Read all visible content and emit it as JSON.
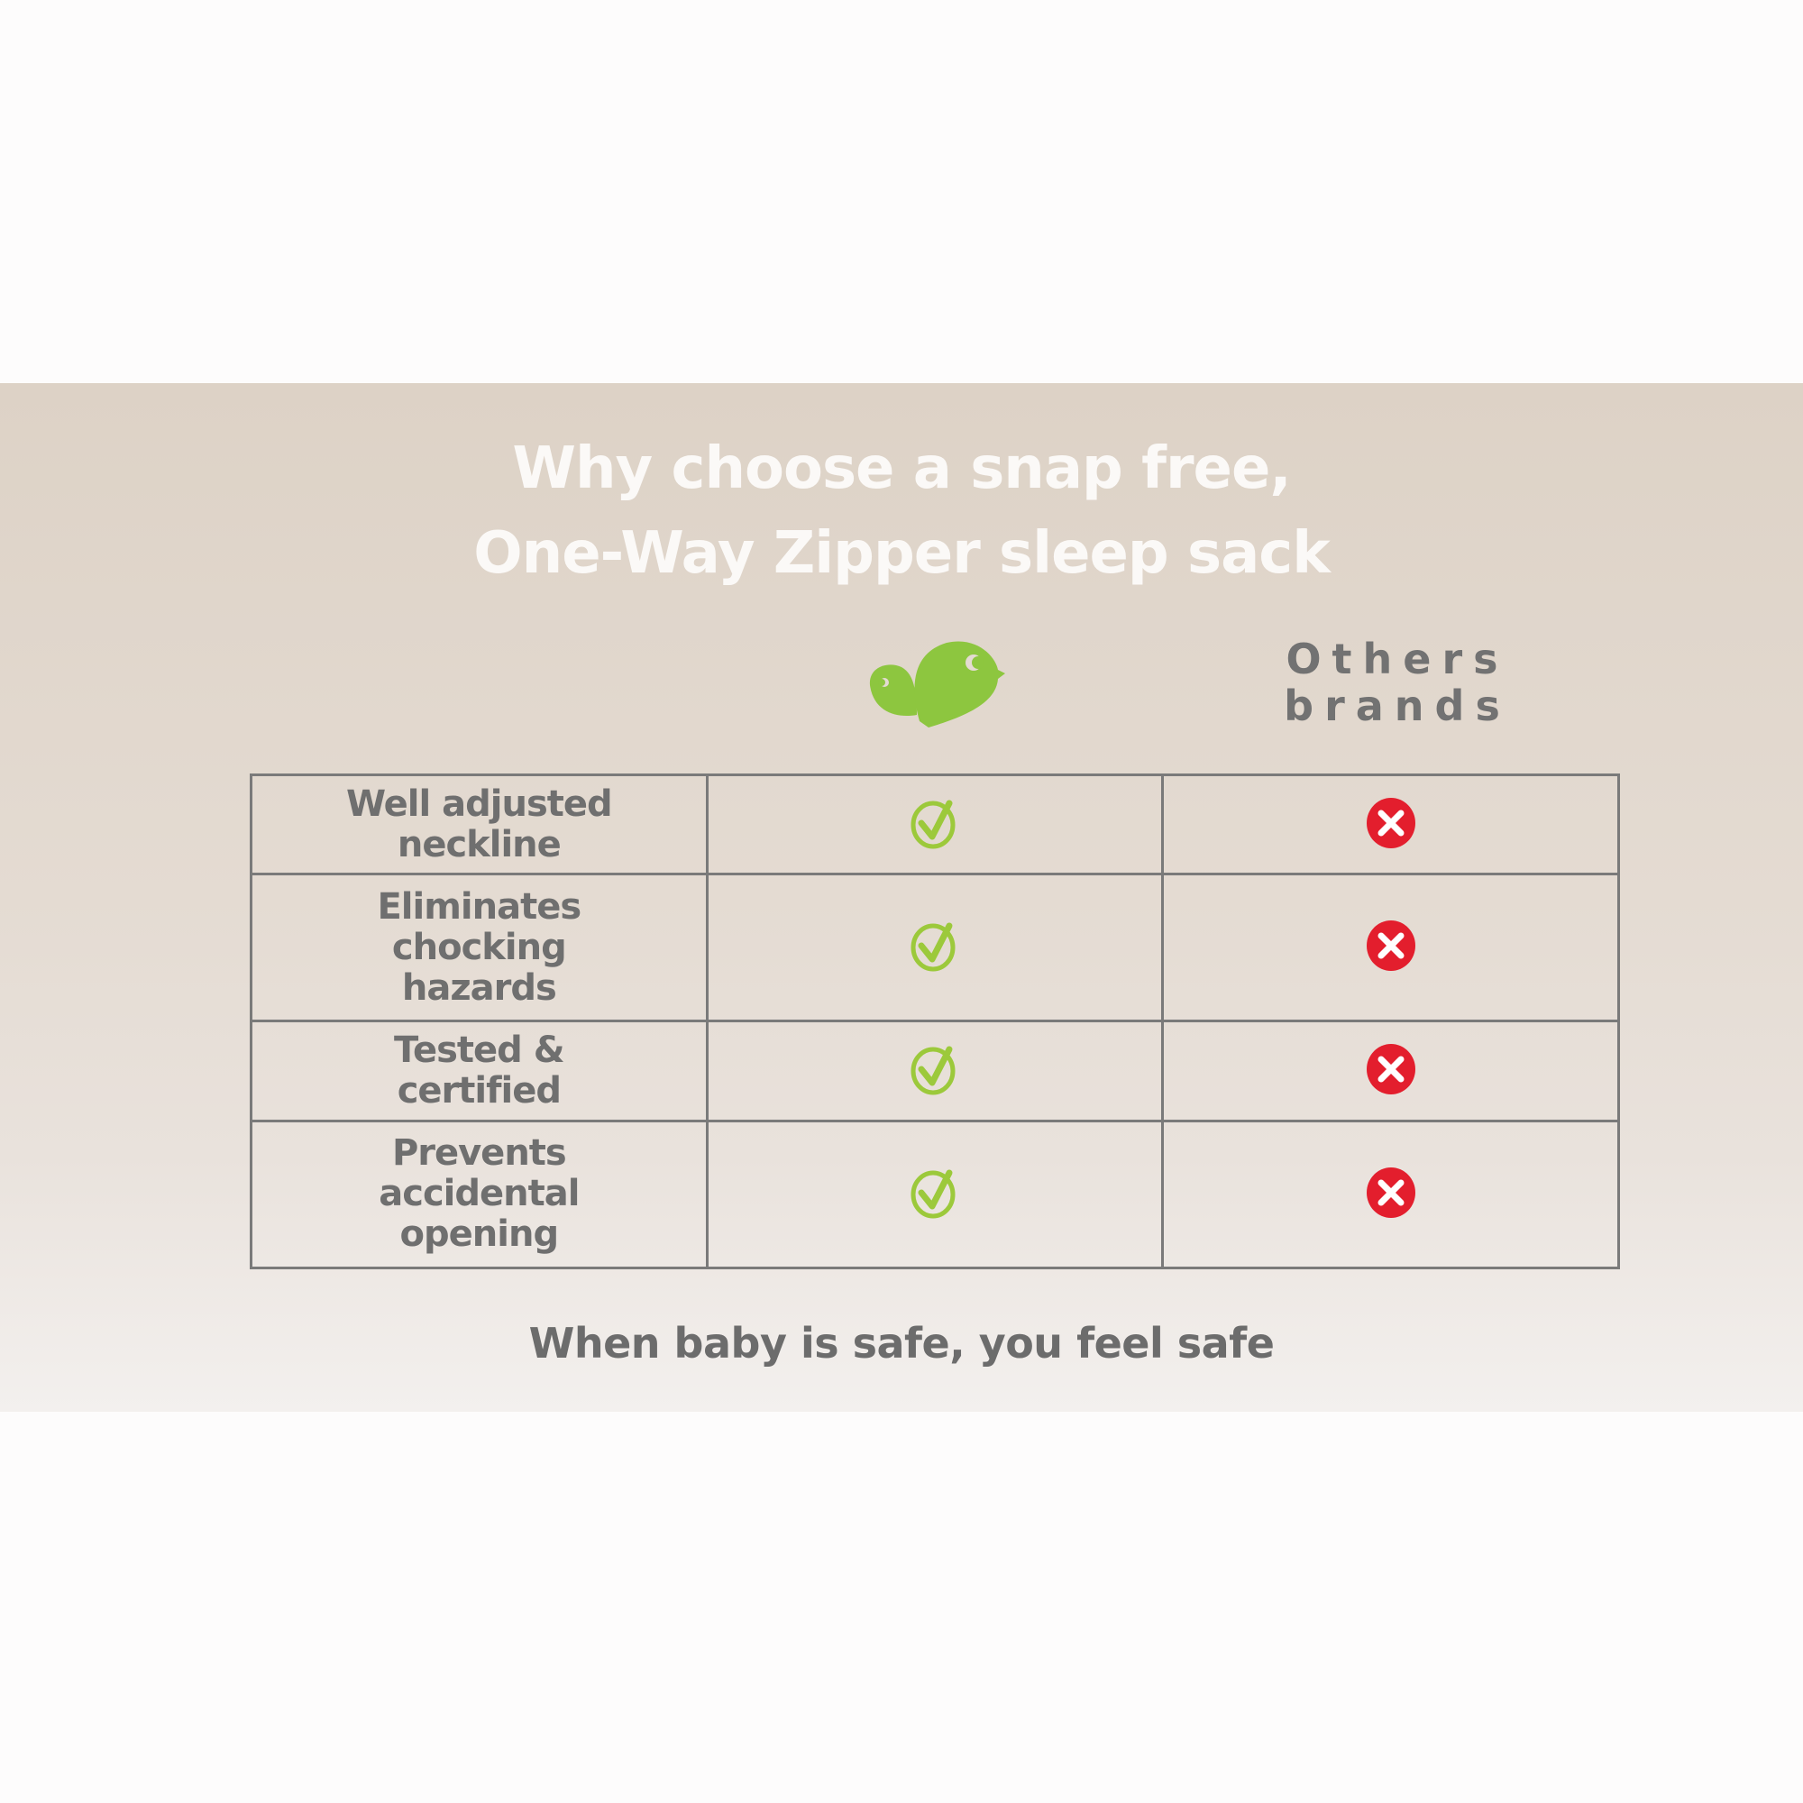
{
  "title": {
    "line1": "Why choose a snap free,",
    "line2": "One-Way Zipper sleep sack"
  },
  "columns": {
    "brand_logo": "green-birds-logo",
    "others_line1": "Others",
    "others_line2": "brands"
  },
  "rows": [
    {
      "label": "Well adjusted neckline",
      "ours": "check",
      "others": "cross"
    },
    {
      "label": "Eliminates chocking hazards",
      "ours": "check",
      "others": "cross"
    },
    {
      "label": "Tested & certified",
      "ours": "check",
      "others": "cross"
    },
    {
      "label": "Prevents accidental opening",
      "ours": "check",
      "others": "cross"
    }
  ],
  "footer": "When baby is safe, you feel safe",
  "colors": {
    "green": "#9cc93b",
    "red": "#e31e2d",
    "text": "#6f6f6f"
  }
}
